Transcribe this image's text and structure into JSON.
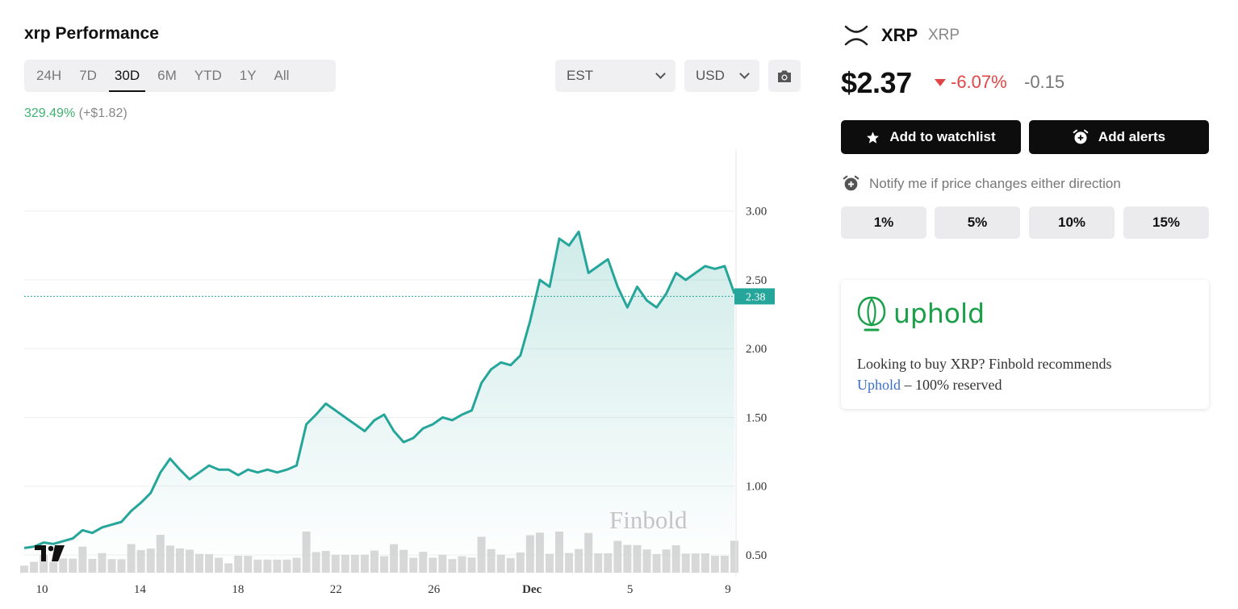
{
  "title": "xrp Performance",
  "tabs": [
    "24H",
    "7D",
    "30D",
    "6M",
    "YTD",
    "1Y",
    "All"
  ],
  "active_tab": "30D",
  "timezone_select": "EST",
  "currency_select": "USD",
  "performance": {
    "pct": "329.49%",
    "abs": "(+$1.82)"
  },
  "coin": {
    "name": "XRP",
    "symbol": "XRP",
    "logo_icon": "xrp-logo-icon"
  },
  "price": "$2.37",
  "change_pct": "-6.07%",
  "change_abs": "-0.15",
  "buttons": {
    "watchlist": "Add to watchlist",
    "alerts": "Add alerts"
  },
  "notify_text": "Notify me if price changes either direction",
  "alert_pcts": [
    "1%",
    "5%",
    "10%",
    "15%"
  ],
  "partner": {
    "name": "uphold",
    "text_before": "Looking to buy XRP? Finbold recommends",
    "link": "Uphold",
    "text_after": " – 100% reserved"
  },
  "watermark": "Finbold",
  "colors": {
    "line": "#26a69a",
    "down": "#e04545",
    "up": "#3cb371",
    "uphold": "#19a049"
  },
  "chart_data": {
    "type": "area",
    "x_tick_labels": [
      "10",
      "14",
      "18",
      "22",
      "26",
      "Dec",
      "5",
      "9"
    ],
    "y_tick_labels": [
      "0.50",
      "1.00",
      "1.50",
      "2.00",
      "2.50",
      "3.00"
    ],
    "ylim": [
      0.4,
      3.45
    ],
    "last_value_label": "2.38",
    "series": [
      {
        "values": [
          0.55,
          0.56,
          0.59,
          0.58,
          0.6,
          0.62,
          0.68,
          0.66,
          0.7,
          0.72,
          0.74,
          0.82,
          0.88,
          0.95,
          1.1,
          1.2,
          1.12,
          1.05,
          1.1,
          1.15,
          1.12,
          1.12,
          1.08,
          1.12,
          1.1,
          1.12,
          1.1,
          1.12,
          1.15,
          1.45,
          1.52,
          1.6,
          1.55,
          1.5,
          1.45,
          1.4,
          1.48,
          1.52,
          1.4,
          1.32,
          1.35,
          1.42,
          1.45,
          1.5,
          1.48,
          1.52,
          1.55,
          1.75,
          1.85,
          1.9,
          1.88,
          1.95,
          2.2,
          2.5,
          2.45,
          2.8,
          2.75,
          2.85,
          2.55,
          2.6,
          2.65,
          2.45,
          2.3,
          2.45,
          2.35,
          2.3,
          2.4,
          2.55,
          2.5,
          2.55,
          2.6,
          2.58,
          2.6,
          2.4
        ]
      }
    ]
  }
}
